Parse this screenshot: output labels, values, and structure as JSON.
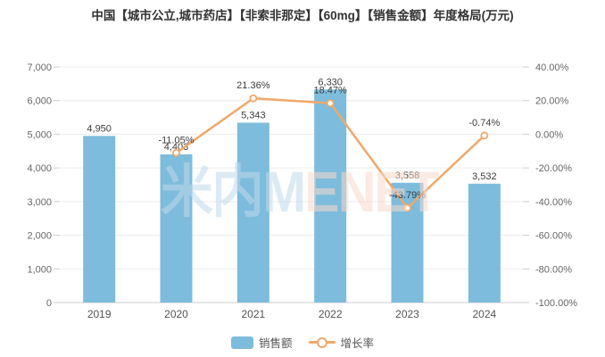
{
  "title": "中国【城市公立,城市药店】【非索非那定】【60mg】【销售金额】年度格局(万元)",
  "watermark": {
    "blue_part": "米内M",
    "red_part": "ENET"
  },
  "legend": {
    "items": [
      {
        "label": "销售额",
        "type": "bar"
      },
      {
        "label": "增长率",
        "type": "line"
      }
    ]
  },
  "colors": {
    "bar": "#7DBCDC",
    "line": "#F0A869",
    "grid": "#ECECEC",
    "axis": "#CCCCCC",
    "tick_label": "#666666",
    "x_label": "#555555",
    "data_label": "#3C3C3C",
    "title": "#333333"
  },
  "chart_data": {
    "type": "combo-bar-line",
    "title": "中国【城市公立,城市药店】【非索非那定】【60mg】【销售金额】年度格局(万元)",
    "categories": [
      "2019",
      "2020",
      "2021",
      "2022",
      "2023",
      "2024"
    ],
    "series": [
      {
        "name": "销售额",
        "type": "bar",
        "axis": "left",
        "color": "#7DBCDC",
        "values": [
          4950,
          4403,
          5343,
          6330,
          3558,
          3532
        ],
        "labels": [
          "4,950",
          "4,403",
          "5,343",
          "6,330",
          "3,558",
          "3,532"
        ]
      },
      {
        "name": "增长率",
        "type": "line",
        "axis": "right",
        "color": "#F0A869",
        "values": [
          null,
          -11.05,
          21.36,
          18.47,
          -43.79,
          -0.74
        ],
        "labels": [
          "",
          "-11.05%",
          "21.36%",
          "18.47%",
          "-43.79%",
          "-0.74%"
        ]
      }
    ],
    "left_axis": {
      "min": 0,
      "max": 7000,
      "tick_labels": [
        "7,000",
        "6,000",
        "5,000",
        "4,000",
        "3,000",
        "2,000",
        "1,000",
        "0"
      ]
    },
    "right_axis": {
      "min": -100,
      "max": 40,
      "tick_labels": [
        "40.00%",
        "20.00%",
        "0.00%",
        "-20.00%",
        "-40.00%",
        "-60.00%",
        "-80.00%",
        "-100.00%"
      ]
    },
    "grid": true,
    "legend_position": "bottom"
  }
}
